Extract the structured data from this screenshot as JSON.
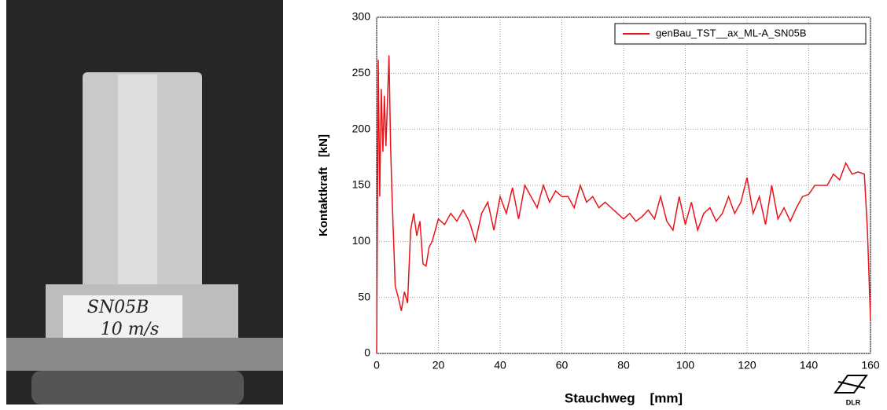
{
  "photo": {
    "label": [
      "SN05B",
      "10 m/s"
    ]
  },
  "logo": "DLR",
  "chart_data": {
    "type": "line",
    "xlabel": "Stauchweg    [mm]",
    "ylabel": "Kontaktkraft   [kN]",
    "x": [
      0,
      0.5,
      1,
      1.5,
      2,
      2.5,
      3,
      4,
      4.5,
      5,
      6,
      7,
      8,
      9,
      10,
      11,
      12,
      13,
      14,
      15,
      16,
      17,
      18,
      20,
      22,
      24,
      26,
      28,
      30,
      32,
      34,
      36,
      38,
      40,
      42,
      44,
      46,
      48,
      50,
      52,
      54,
      56,
      58,
      60,
      62,
      64,
      66,
      68,
      70,
      72,
      74,
      76,
      78,
      80,
      82,
      84,
      86,
      88,
      90,
      92,
      94,
      96,
      98,
      100,
      102,
      104,
      106,
      108,
      110,
      112,
      114,
      116,
      118,
      120,
      122,
      124,
      126,
      128,
      130,
      132,
      134,
      136,
      138,
      140,
      142,
      144,
      146,
      148,
      150,
      152,
      154,
      156,
      158,
      159,
      160
    ],
    "series": [
      {
        "name": "genBau_TST__ax_ML-A_SN05B",
        "color": "#e8141b",
        "values": [
          0,
          262,
          140,
          236,
          180,
          230,
          185,
          266,
          185,
          140,
          60,
          50,
          38,
          55,
          45,
          110,
          125,
          105,
          118,
          80,
          78,
          95,
          100,
          120,
          115,
          125,
          118,
          128,
          118,
          100,
          125,
          135,
          110,
          140,
          125,
          148,
          120,
          150,
          140,
          130,
          150,
          135,
          145,
          140,
          140,
          130,
          150,
          135,
          140,
          130,
          135,
          130,
          125,
          120,
          125,
          118,
          122,
          128,
          120,
          140,
          118,
          110,
          140,
          115,
          135,
          110,
          125,
          130,
          118,
          125,
          140,
          125,
          135,
          157,
          125,
          140,
          115,
          150,
          120,
          130,
          118,
          130,
          140,
          142,
          150,
          150,
          150,
          160,
          155,
          170,
          160,
          162,
          160,
          110,
          30
        ]
      }
    ],
    "xlim": [
      0,
      160
    ],
    "xticks": [
      0,
      20,
      40,
      60,
      80,
      100,
      120,
      140,
      160
    ],
    "ylim": [
      0,
      300
    ],
    "yticks": [
      0,
      50,
      100,
      150,
      200,
      250,
      300
    ],
    "grid": true,
    "legend": "upper right"
  }
}
